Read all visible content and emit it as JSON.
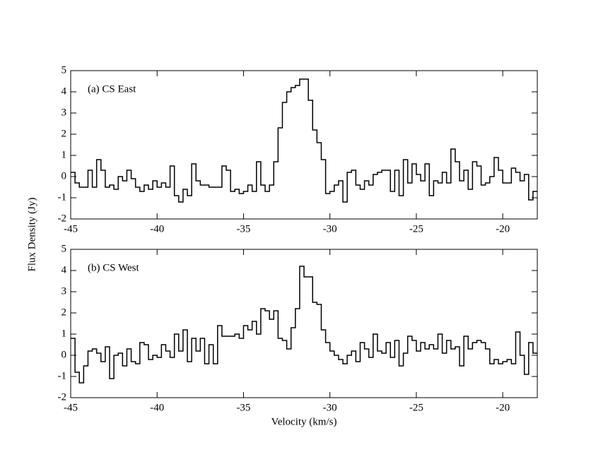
{
  "chart_data": [
    {
      "type": "step",
      "label": "(a) CS East",
      "ylabel": "Flux Density (Jy)",
      "color": "#000000",
      "xlim": [
        -45,
        -18
      ],
      "ylim": [
        -2,
        5
      ],
      "xticks": [
        -45,
        -40,
        -35,
        -30,
        -25,
        -20
      ],
      "yticks": [
        -2,
        -1,
        0,
        1,
        2,
        3,
        4,
        5
      ],
      "x": [
        -44.875,
        -44.625,
        -44.375,
        -44.125,
        -43.875,
        -43.625,
        -43.375,
        -43.125,
        -42.875,
        -42.625,
        -42.375,
        -42.125,
        -41.875,
        -41.625,
        -41.375,
        -41.125,
        -40.875,
        -40.625,
        -40.375,
        -40.125,
        -39.875,
        -39.625,
        -39.375,
        -39.125,
        -38.875,
        -38.625,
        -38.375,
        -38.125,
        -37.875,
        -37.625,
        -37.375,
        -37.125,
        -36.875,
        -36.625,
        -36.375,
        -36.125,
        -35.875,
        -35.625,
        -35.375,
        -35.125,
        -34.875,
        -34.625,
        -34.375,
        -34.125,
        -33.875,
        -33.625,
        -33.375,
        -33.125,
        -32.875,
        -32.625,
        -32.375,
        -32.125,
        -31.875,
        -31.625,
        -31.375,
        -31.125,
        -30.875,
        -30.625,
        -30.375,
        -30.125,
        -29.875,
        -29.625,
        -29.375,
        -29.125,
        -28.875,
        -28.625,
        -28.375,
        -28.125,
        -27.875,
        -27.625,
        -27.375,
        -27.125,
        -26.875,
        -26.625,
        -26.375,
        -26.125,
        -25.875,
        -25.625,
        -25.375,
        -25.125,
        -24.875,
        -24.625,
        -24.375,
        -24.125,
        -23.875,
        -23.625,
        -23.375,
        -23.125,
        -22.875,
        -22.625,
        -22.375,
        -22.125,
        -21.875,
        -21.625,
        -21.375,
        -21.125,
        -20.875,
        -20.625,
        -20.375,
        -20.125,
        -19.875,
        -19.625,
        -19.375,
        -19.125,
        -18.875,
        -18.625,
        -18.375,
        -18.125
      ],
      "values": [
        0.2,
        -0.3,
        -0.5,
        -0.5,
        0.3,
        -0.5,
        0.8,
        0.3,
        -0.5,
        -0.4,
        -0.6,
        0.0,
        -0.2,
        0.3,
        -0.1,
        -0.5,
        -0.7,
        -0.4,
        -0.6,
        -0.2,
        -0.5,
        -0.3,
        -0.5,
        0.5,
        -0.9,
        -1.2,
        -0.6,
        -0.9,
        0.6,
        -0.2,
        -0.4,
        -0.4,
        -0.5,
        -0.5,
        -0.5,
        0.5,
        0.3,
        -0.7,
        -0.6,
        -0.8,
        -0.7,
        -0.4,
        -0.7,
        0.7,
        -0.4,
        -0.7,
        -0.4,
        0.7,
        2.3,
        3.5,
        4.0,
        4.2,
        4.3,
        4.6,
        4.6,
        3.6,
        2.2,
        1.6,
        0.8,
        -0.8,
        -0.7,
        -0.4,
        -0.2,
        -1.2,
        0.2,
        0.3,
        -0.4,
        -0.6,
        -0.2,
        -0.4,
        0.1,
        0.2,
        0.3,
        0.3,
        -0.7,
        0.3,
        -0.9,
        0.8,
        -0.3,
        0.6,
        0.1,
        -0.2,
        0.6,
        -0.9,
        -0.2,
        -0.3,
        0.2,
        -0.3,
        1.3,
        0.7,
        -0.2,
        0.3,
        -0.6,
        0.7,
        0.5,
        -0.4,
        -0.3,
        0.0,
        0.9,
        0.3,
        -0.3,
        -0.3,
        0.4,
        0.2,
        -0.2,
        0.1,
        -1.1,
        -0.7
      ]
    },
    {
      "type": "step",
      "label": "(b) CS West",
      "xlabel": "Velocity (km/s)",
      "color": "#000000",
      "xlim": [
        -45,
        -18
      ],
      "ylim": [
        -2,
        5
      ],
      "xticks": [
        -45,
        -40,
        -35,
        -30,
        -25,
        -20
      ],
      "yticks": [
        -2,
        -1,
        0,
        1,
        2,
        3,
        4,
        5
      ],
      "x": [
        -44.875,
        -44.625,
        -44.375,
        -44.125,
        -43.875,
        -43.625,
        -43.375,
        -43.125,
        -42.875,
        -42.625,
        -42.375,
        -42.125,
        -41.875,
        -41.625,
        -41.375,
        -41.125,
        -40.875,
        -40.625,
        -40.375,
        -40.125,
        -39.875,
        -39.625,
        -39.375,
        -39.125,
        -38.875,
        -38.625,
        -38.375,
        -38.125,
        -37.875,
        -37.625,
        -37.375,
        -37.125,
        -36.875,
        -36.625,
        -36.375,
        -36.125,
        -35.875,
        -35.625,
        -35.375,
        -35.125,
        -34.875,
        -34.625,
        -34.375,
        -34.125,
        -33.875,
        -33.625,
        -33.375,
        -33.125,
        -32.875,
        -32.625,
        -32.375,
        -32.125,
        -31.875,
        -31.625,
        -31.375,
        -31.125,
        -30.875,
        -30.625,
        -30.375,
        -30.125,
        -29.875,
        -29.625,
        -29.375,
        -29.125,
        -28.875,
        -28.625,
        -28.375,
        -28.125,
        -27.875,
        -27.625,
        -27.375,
        -27.125,
        -26.875,
        -26.625,
        -26.375,
        -26.125,
        -25.875,
        -25.625,
        -25.375,
        -25.125,
        -24.875,
        -24.625,
        -24.375,
        -24.125,
        -23.875,
        -23.625,
        -23.375,
        -23.125,
        -22.875,
        -22.625,
        -22.375,
        -22.125,
        -21.875,
        -21.625,
        -21.375,
        -21.125,
        -20.875,
        -20.625,
        -20.375,
        -20.125,
        -19.875,
        -19.625,
        -19.375,
        -19.125,
        -18.875,
        -18.625,
        -18.375,
        -18.125
      ],
      "values": [
        0.8,
        -0.8,
        -1.3,
        -0.5,
        0.2,
        0.3,
        0.1,
        -0.3,
        0.4,
        -1.1,
        0.0,
        0.1,
        -0.5,
        0.3,
        -0.3,
        -0.4,
        0.6,
        0.5,
        -0.2,
        0.0,
        -0.1,
        0.5,
        0.2,
        -0.1,
        1.0,
        0.2,
        1.2,
        -0.3,
        0.8,
        0.2,
        0.8,
        -0.4,
        0.5,
        -0.4,
        1.4,
        0.9,
        0.9,
        0.9,
        1.0,
        0.8,
        1.4,
        1.2,
        1.6,
        1.0,
        2.2,
        2.1,
        1.7,
        2.1,
        0.8,
        0.7,
        0.3,
        1.3,
        2.2,
        4.2,
        3.7,
        3.7,
        2.5,
        2.4,
        1.2,
        0.6,
        0.2,
        0.0,
        -0.2,
        -0.4,
        0.0,
        0.2,
        -0.3,
        0.6,
        0.3,
        -0.1,
        1.0,
        0.2,
        0.1,
        0.6,
        -0.1,
        0.7,
        -0.5,
        0.1,
        0.9,
        0.7,
        0.2,
        0.6,
        0.3,
        0.5,
        0.3,
        1.0,
        0.1,
        0.7,
        0.3,
        0.4,
        -0.5,
        0.9,
        0.3,
        0.6,
        0.7,
        0.6,
        0.3,
        -0.4,
        -0.2,
        -0.4,
        -0.3,
        -0.2,
        -0.4,
        1.1,
        0.0,
        -0.9,
        0.6,
        0.1
      ]
    }
  ]
}
